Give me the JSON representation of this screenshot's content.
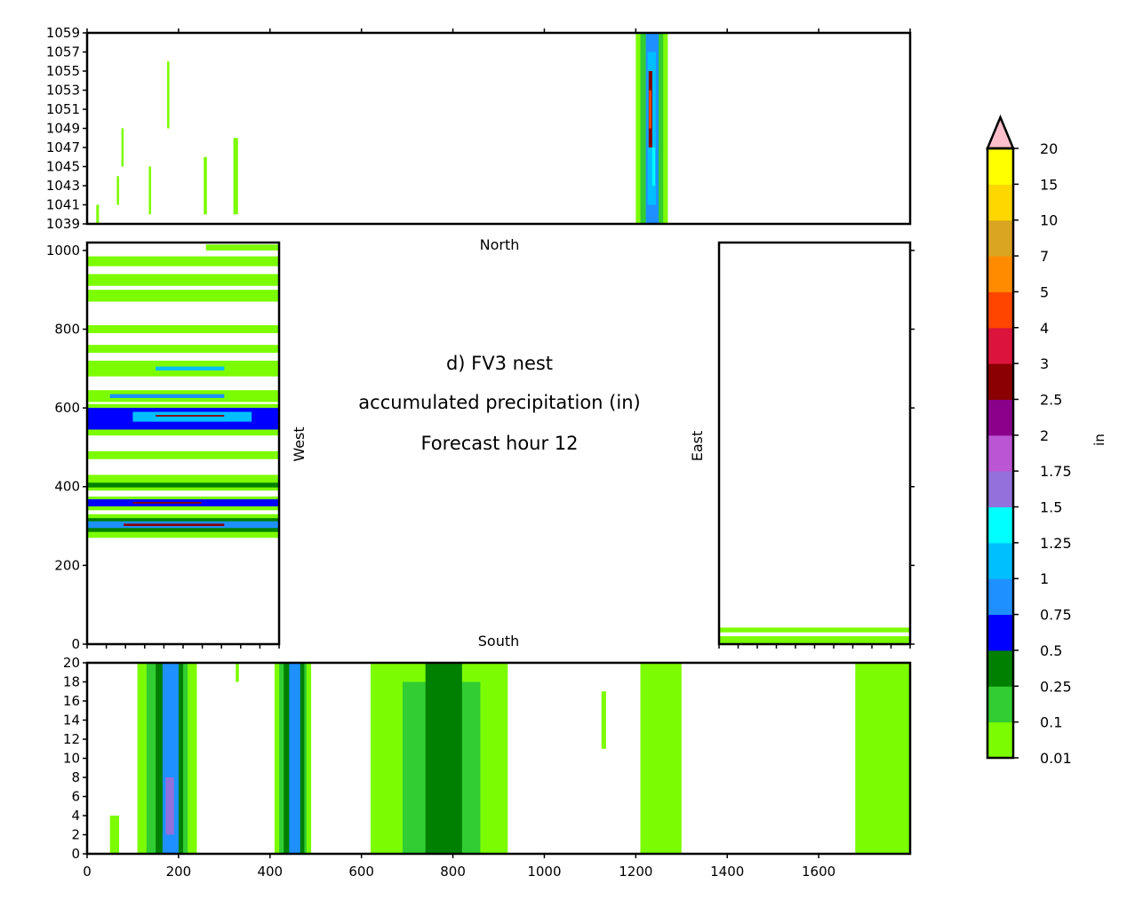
{
  "title_lines": [
    "d) FV3 nest",
    "accumulated precipitation (in)",
    "Forecast hour 12"
  ],
  "chart_data": [
    {
      "type": "heatmap",
      "panel": "north",
      "label": "North",
      "x_ticks": [],
      "xlim": [
        0,
        1800
      ],
      "ylim": [
        1039,
        1059
      ],
      "y_ticks": [
        "1039",
        "1041",
        "1043",
        "1045",
        "1047",
        "1049",
        "1051",
        "1053",
        "1055",
        "1057",
        "1059"
      ],
      "bands": [
        {
          "x0": 1200,
          "x1": 1270,
          "y0": 1039,
          "y1": 1059,
          "level": 0
        },
        {
          "x0": 1210,
          "x1": 1260,
          "y0": 1039,
          "y1": 1059,
          "level": 1
        },
        {
          "x0": 1222,
          "x1": 1250,
          "y0": 1039,
          "y1": 1059,
          "level": 4
        },
        {
          "x0": 1226,
          "x1": 1244,
          "y0": 1041,
          "y1": 1057,
          "level": 5
        },
        {
          "x0": 1228,
          "x1": 1236,
          "y0": 1047,
          "y1": 1055,
          "level": 10
        },
        {
          "x0": 1229,
          "x1": 1234,
          "y0": 1049,
          "y1": 1053,
          "level": 12
        },
        {
          "x0": 1236,
          "x1": 1242,
          "y0": 1043,
          "y1": 1047,
          "level": 6
        },
        {
          "x0": 20,
          "x1": 26,
          "y0": 1039,
          "y1": 1041,
          "level": 0
        },
        {
          "x0": 65,
          "x1": 70,
          "y0": 1041,
          "y1": 1044,
          "level": 0
        },
        {
          "x0": 75,
          "x1": 80,
          "y0": 1045,
          "y1": 1049,
          "level": 0
        },
        {
          "x0": 175,
          "x1": 180,
          "y0": 1049,
          "y1": 1056,
          "level": 0
        },
        {
          "x0": 255,
          "x1": 262,
          "y0": 1040,
          "y1": 1046,
          "level": 0
        },
        {
          "x0": 320,
          "x1": 330,
          "y0": 1040,
          "y1": 1048,
          "level": 0
        },
        {
          "x0": 135,
          "x1": 140,
          "y0": 1040,
          "y1": 1045,
          "level": 0
        }
      ]
    },
    {
      "type": "heatmap",
      "panel": "west",
      "label": "West",
      "xlim": [
        0,
        420
      ],
      "ylim": [
        0,
        1020
      ],
      "y_ticks": [
        "0",
        "200",
        "400",
        "600",
        "800",
        "1000"
      ],
      "bands": [
        {
          "x0": 0,
          "x1": 420,
          "y0": 270,
          "y1": 330,
          "level": 0
        },
        {
          "x0": 0,
          "x1": 420,
          "y0": 285,
          "y1": 320,
          "level": 2
        },
        {
          "x0": 0,
          "x1": 420,
          "y0": 295,
          "y1": 312,
          "level": 4
        },
        {
          "x0": 80,
          "x1": 300,
          "y0": 300,
          "y1": 306,
          "level": 10
        },
        {
          "x0": 0,
          "x1": 420,
          "y0": 340,
          "y1": 375,
          "level": 0
        },
        {
          "x0": 0,
          "x1": 420,
          "y0": 350,
          "y1": 368,
          "level": 3
        },
        {
          "x0": 100,
          "x1": 250,
          "y0": 357,
          "y1": 361,
          "level": 10
        },
        {
          "x0": 0,
          "x1": 420,
          "y0": 390,
          "y1": 430,
          "level": 0
        },
        {
          "x0": 0,
          "x1": 420,
          "y0": 398,
          "y1": 410,
          "level": 2
        },
        {
          "x0": 0,
          "x1": 420,
          "y0": 470,
          "y1": 490,
          "level": 0
        },
        {
          "x0": 0,
          "x1": 420,
          "y0": 530,
          "y1": 610,
          "level": 0
        },
        {
          "x0": 0,
          "x1": 420,
          "y0": 545,
          "y1": 600,
          "level": 3
        },
        {
          "x0": 100,
          "x1": 360,
          "y0": 565,
          "y1": 590,
          "level": 5
        },
        {
          "x0": 150,
          "x1": 300,
          "y0": 578,
          "y1": 582,
          "level": 10
        },
        {
          "x0": 0,
          "x1": 420,
          "y0": 615,
          "y1": 645,
          "level": 0
        },
        {
          "x0": 50,
          "x1": 300,
          "y0": 625,
          "y1": 635,
          "level": 4
        },
        {
          "x0": 0,
          "x1": 420,
          "y0": 680,
          "y1": 720,
          "level": 0
        },
        {
          "x0": 150,
          "x1": 300,
          "y0": 695,
          "y1": 705,
          "level": 5
        },
        {
          "x0": 0,
          "x1": 420,
          "y0": 740,
          "y1": 760,
          "level": 0
        },
        {
          "x0": 0,
          "x1": 420,
          "y0": 790,
          "y1": 810,
          "level": 0
        },
        {
          "x0": 0,
          "x1": 420,
          "y0": 870,
          "y1": 900,
          "level": 0
        },
        {
          "x0": 0,
          "x1": 420,
          "y0": 910,
          "y1": 940,
          "level": 0
        },
        {
          "x0": 0,
          "x1": 420,
          "y0": 960,
          "y1": 985,
          "level": 0
        },
        {
          "x0": 260,
          "x1": 420,
          "y0": 1000,
          "y1": 1015,
          "level": 0
        }
      ]
    },
    {
      "type": "heatmap",
      "panel": "east",
      "label": "East",
      "xlim": [
        0,
        420
      ],
      "ylim": [
        0,
        1020
      ],
      "y_ticks": [],
      "bands": [
        {
          "x0": 0,
          "x1": 420,
          "y0": 0,
          "y1": 20,
          "level": 0
        },
        {
          "x0": 0,
          "x1": 420,
          "y0": 30,
          "y1": 42,
          "level": 0
        }
      ]
    },
    {
      "type": "heatmap",
      "panel": "south",
      "label": "South",
      "xlim": [
        0,
        1800
      ],
      "ylim": [
        0,
        20
      ],
      "x_ticks": [
        "0",
        "200",
        "400",
        "600",
        "800",
        "1000",
        "1200",
        "1400",
        "1600"
      ],
      "y_ticks": [
        "0",
        "2",
        "4",
        "6",
        "8",
        "10",
        "12",
        "14",
        "16",
        "18",
        "20"
      ],
      "bands": [
        {
          "x0": 110,
          "x1": 240,
          "y0": 0,
          "y1": 20,
          "level": 0
        },
        {
          "x0": 130,
          "x1": 220,
          "y0": 0,
          "y1": 20,
          "level": 1
        },
        {
          "x0": 150,
          "x1": 210,
          "y0": 0,
          "y1": 20,
          "level": 2
        },
        {
          "x0": 165,
          "x1": 200,
          "y0": 0,
          "y1": 20,
          "level": 4
        },
        {
          "x0": 172,
          "x1": 190,
          "y0": 2,
          "y1": 8,
          "level": 7
        },
        {
          "x0": 410,
          "x1": 490,
          "y0": 0,
          "y1": 20,
          "level": 0
        },
        {
          "x0": 420,
          "x1": 480,
          "y0": 0,
          "y1": 20,
          "level": 1
        },
        {
          "x0": 430,
          "x1": 475,
          "y0": 0,
          "y1": 20,
          "level": 2
        },
        {
          "x0": 442,
          "x1": 466,
          "y0": 0,
          "y1": 20,
          "level": 4
        },
        {
          "x0": 620,
          "x1": 920,
          "y0": 0,
          "y1": 20,
          "level": 0
        },
        {
          "x0": 690,
          "x1": 860,
          "y0": 0,
          "y1": 18,
          "level": 1
        },
        {
          "x0": 740,
          "x1": 820,
          "y0": 0,
          "y1": 20,
          "level": 2
        },
        {
          "x0": 1210,
          "x1": 1300,
          "y0": 0,
          "y1": 20,
          "level": 0
        },
        {
          "x0": 1125,
          "x1": 1135,
          "y0": 11,
          "y1": 17,
          "level": 0
        },
        {
          "x0": 1680,
          "x1": 1800,
          "y0": 0,
          "y1": 20,
          "level": 0
        },
        {
          "x0": 50,
          "x1": 70,
          "y0": 0,
          "y1": 4,
          "level": 0
        },
        {
          "x0": 325,
          "x1": 332,
          "y0": 18,
          "y1": 20,
          "level": 0
        }
      ]
    }
  ],
  "colorbar": {
    "label": "in",
    "ticks": [
      "0.01",
      "0.1",
      "0.25",
      "0.5",
      "0.75",
      "1",
      "1.25",
      "1.5",
      "1.75",
      "2",
      "2.5",
      "3",
      "4",
      "5",
      "7",
      "10",
      "15",
      "20"
    ],
    "colors": [
      "#7cfc00",
      "#32cd32",
      "#008000",
      "#0000ff",
      "#1e90ff",
      "#00bfff",
      "#00ffff",
      "#9370db",
      "#ba55d3",
      "#8b008b",
      "#8b0000",
      "#dc143c",
      "#ff4500",
      "#ff8c00",
      "#daa520",
      "#ffd700",
      "#ffff00"
    ],
    "extend_color": "#ffc0cb"
  }
}
